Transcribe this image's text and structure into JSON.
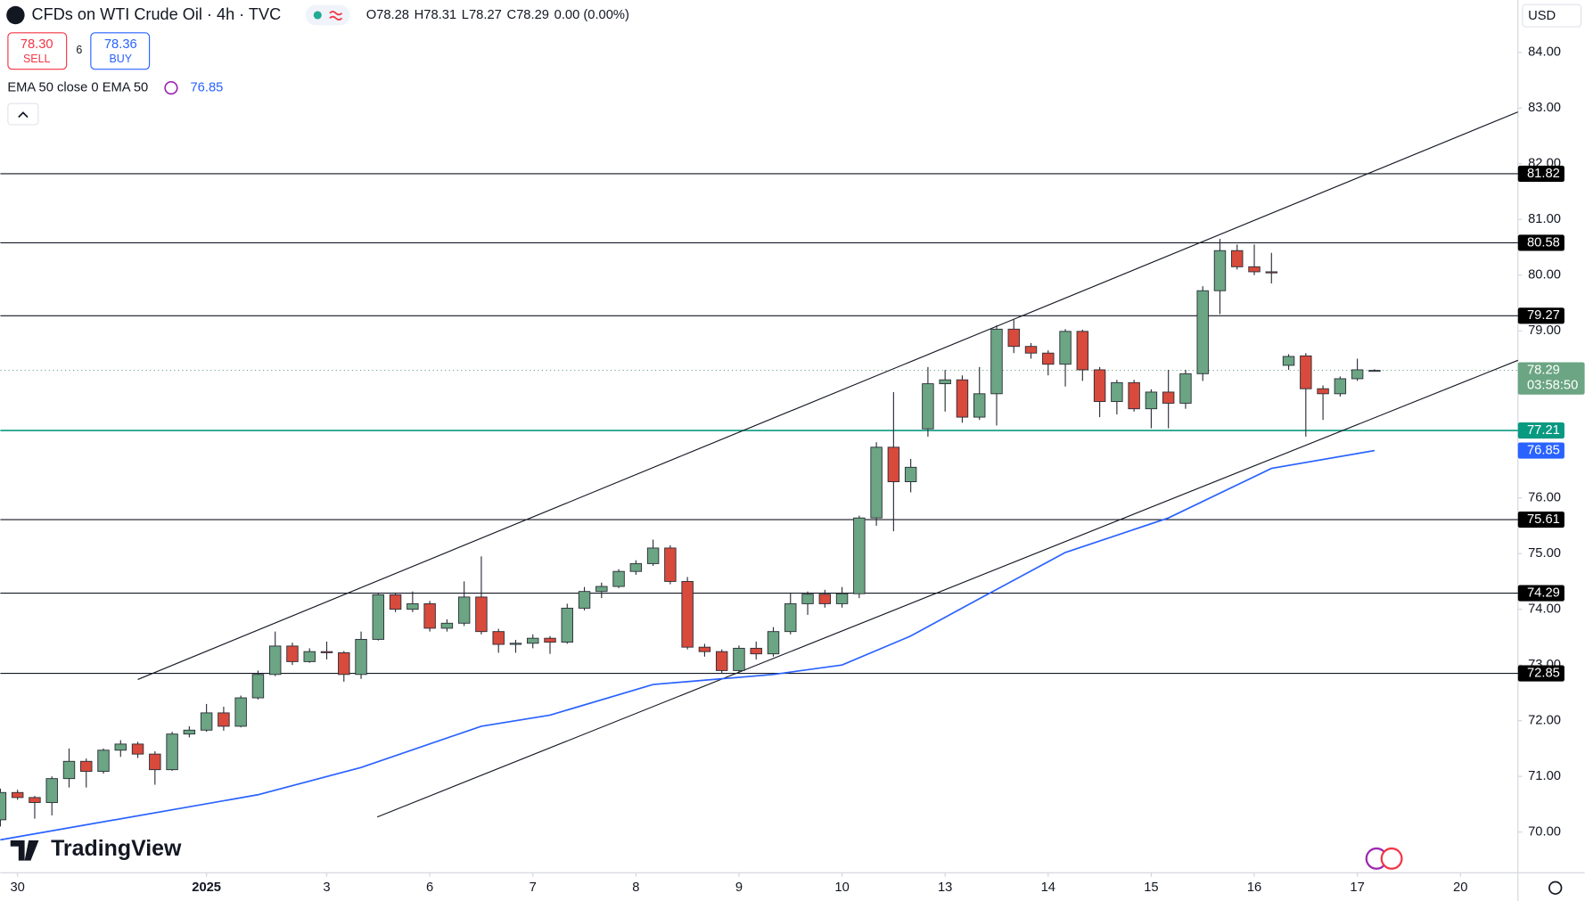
{
  "chart_data": {
    "type": "candlestick",
    "title": "CFDs on WTI Crude Oil · 4h · TVC",
    "legend_ohlc": [
      "O78.28",
      "H78.31",
      "L78.27",
      "C78.29",
      "0.00 (0.00%)"
    ],
    "sell": {
      "price": "78.30",
      "label": "SELL"
    },
    "spread": "6",
    "buy": {
      "price": "78.36",
      "label": "BUY"
    },
    "currency": "USD",
    "brand": "TradingView",
    "x": [
      0,
      1,
      2,
      3,
      4,
      5,
      6,
      7,
      8,
      9,
      10,
      11,
      12,
      13,
      14,
      15,
      16,
      17,
      18,
      19,
      20,
      21,
      22,
      23,
      24,
      25,
      26,
      27,
      28,
      29,
      30,
      31,
      32,
      33,
      34,
      35,
      36,
      37,
      38,
      39,
      40,
      41,
      42,
      43,
      44,
      45,
      46,
      47,
      48,
      49,
      50,
      51,
      52,
      53,
      54,
      55,
      56,
      57,
      58,
      59,
      60,
      61,
      62,
      63,
      64,
      65,
      66,
      67,
      68,
      69,
      70,
      71,
      72,
      73,
      74,
      75,
      76,
      77,
      78,
      79,
      80
    ],
    "open": [
      70.22,
      70.71,
      70.62,
      70.53,
      70.96,
      71.27,
      71.09,
      71.47,
      71.58,
      71.4,
      71.12,
      71.76,
      71.83,
      72.14,
      71.9,
      72.41,
      72.83,
      73.34,
      73.06,
      73.24,
      73.22,
      72.83,
      73.46,
      74.26,
      74.0,
      74.1,
      73.66,
      73.75,
      74.22,
      73.6,
      73.37,
      73.39,
      73.48,
      73.41,
      74.02,
      74.32,
      74.41,
      74.68,
      74.82,
      75.1,
      74.5,
      73.32,
      73.24,
      72.9,
      73.3,
      73.2,
      73.6,
      74.1,
      74.27,
      74.1,
      74.28,
      75.64,
      76.91,
      76.29,
      77.24,
      78.05,
      78.12,
      77.45,
      77.87,
      79.03,
      78.72,
      78.6,
      78.4,
      78.99,
      78.3,
      77.73,
      78.07,
      77.6,
      77.9,
      77.7,
      78.23,
      79.72,
      80.44,
      80.15,
      80.06,
      78.38,
      78.55,
      77.96,
      77.87,
      78.14,
      78.28
    ],
    "high": [
      70.78,
      70.76,
      70.65,
      71.0,
      71.5,
      71.32,
      71.5,
      71.65,
      71.62,
      71.45,
      71.8,
      71.9,
      72.3,
      72.25,
      72.45,
      72.9,
      73.6,
      73.4,
      73.3,
      73.42,
      73.25,
      73.6,
      74.3,
      74.3,
      74.32,
      74.15,
      73.82,
      74.5,
      74.95,
      73.65,
      73.45,
      73.55,
      73.52,
      74.1,
      74.4,
      74.48,
      74.72,
      74.88,
      75.25,
      75.15,
      74.58,
      73.38,
      73.28,
      73.35,
      73.42,
      73.68,
      74.3,
      74.32,
      74.35,
      74.4,
      75.68,
      77.0,
      77.9,
      76.7,
      78.35,
      78.3,
      78.2,
      78.35,
      79.1,
      79.2,
      78.78,
      78.65,
      79.03,
      79.02,
      78.35,
      78.12,
      78.12,
      77.95,
      78.3,
      78.3,
      79.8,
      80.65,
      80.55,
      80.55,
      80.4,
      78.58,
      78.6,
      78.02,
      78.18,
      78.5,
      78.31
    ],
    "low": [
      70.1,
      70.58,
      70.24,
      70.3,
      70.8,
      70.8,
      71.05,
      71.35,
      71.33,
      70.85,
      71.1,
      71.7,
      71.8,
      71.82,
      71.88,
      72.38,
      72.8,
      73.0,
      73.04,
      73.1,
      72.7,
      72.75,
      73.44,
      73.95,
      73.95,
      73.6,
      73.6,
      73.7,
      73.55,
      73.22,
      73.22,
      73.3,
      73.2,
      73.38,
      73.98,
      74.2,
      74.38,
      74.62,
      74.78,
      74.45,
      73.28,
      73.15,
      72.85,
      72.85,
      73.1,
      73.15,
      73.55,
      73.9,
      74.03,
      74.03,
      74.2,
      75.5,
      75.4,
      76.1,
      77.1,
      77.55,
      77.35,
      77.4,
      77.3,
      78.6,
      78.5,
      78.2,
      78.0,
      78.1,
      77.45,
      77.5,
      77.55,
      77.25,
      77.25,
      77.6,
      78.1,
      79.3,
      80.1,
      80.0,
      79.85,
      78.3,
      77.1,
      77.4,
      77.82,
      78.1,
      78.27
    ],
    "close": [
      70.71,
      70.62,
      70.53,
      70.96,
      71.27,
      71.09,
      71.47,
      71.58,
      71.4,
      71.12,
      71.76,
      71.83,
      72.14,
      71.9,
      72.41,
      72.83,
      73.34,
      73.06,
      73.24,
      73.22,
      72.83,
      73.46,
      74.26,
      74.0,
      74.1,
      73.66,
      73.75,
      74.22,
      73.6,
      73.37,
      73.39,
      73.48,
      73.41,
      74.02,
      74.32,
      74.41,
      74.68,
      74.82,
      75.1,
      74.5,
      73.32,
      73.24,
      72.9,
      73.3,
      73.2,
      73.6,
      74.1,
      74.27,
      74.1,
      74.28,
      75.64,
      76.91,
      76.29,
      76.55,
      78.05,
      78.12,
      77.45,
      77.87,
      79.03,
      78.72,
      78.6,
      78.4,
      78.99,
      78.3,
      77.73,
      78.07,
      77.6,
      77.9,
      77.7,
      78.23,
      79.72,
      80.44,
      80.15,
      80.06,
      80.04,
      78.54,
      77.96,
      77.87,
      78.14,
      78.3,
      78.29
    ],
    "up_color": "#6ba583",
    "down_color": "#d84a3b",
    "ema": {
      "label": "EMA 50 close 0 EMA 50",
      "value": 76.85,
      "color": "#2962ff",
      "x": [
        0,
        15,
        21,
        28,
        32,
        38,
        45,
        49,
        53,
        57,
        62,
        68,
        74,
        80
      ],
      "values": [
        69.86,
        70.67,
        71.16,
        71.9,
        72.1,
        72.65,
        72.83,
        73.0,
        73.52,
        74.19,
        75.02,
        75.64,
        76.53,
        76.85
      ]
    },
    "levels": [
      {
        "value": 81.82,
        "color": "#131722"
      },
      {
        "value": 80.58,
        "color": "#131722"
      },
      {
        "value": 79.27,
        "color": "#131722"
      },
      {
        "value": 77.21,
        "color": "#089981"
      },
      {
        "value": 75.61,
        "color": "#131722"
      },
      {
        "value": 74.29,
        "color": "#131722"
      },
      {
        "value": 72.85,
        "color": "#131722"
      }
    ],
    "last_price": {
      "value": 78.29,
      "countdown": "03:58:50",
      "color": "#6ba583"
    },
    "trendlines": [
      {
        "x": [
          8,
          88.35
        ],
        "y": [
          72.74,
          82.93
        ]
      },
      {
        "x": [
          21.94,
          88.35
        ],
        "y": [
          70.27,
          78.47
        ]
      }
    ],
    "xlim": [
      0,
      88.35
    ],
    "xticks": [
      {
        "value": 1,
        "label": "30"
      },
      {
        "value": 12,
        "label": "2025"
      },
      {
        "value": 19,
        "label": "3"
      },
      {
        "value": 25,
        "label": "6"
      },
      {
        "value": 31,
        "label": "7"
      },
      {
        "value": 37,
        "label": "8"
      },
      {
        "value": 43,
        "label": "9"
      },
      {
        "value": 49,
        "label": "10"
      },
      {
        "value": 55,
        "label": "13"
      },
      {
        "value": 61,
        "label": "14"
      },
      {
        "value": 67,
        "label": "15"
      },
      {
        "value": 73,
        "label": "16"
      },
      {
        "value": 79,
        "label": "17"
      },
      {
        "value": 85,
        "label": "20"
      }
    ],
    "ylim": [
      69.27,
      84.94
    ],
    "yticks": [
      {
        "value": 70,
        "label": "70.00"
      },
      {
        "value": 71,
        "label": "71.00"
      },
      {
        "value": 72,
        "label": "72.00"
      },
      {
        "value": 73,
        "label": "73.00"
      },
      {
        "value": 74,
        "label": "74.00"
      },
      {
        "value": 75,
        "label": "75.00"
      },
      {
        "value": 76,
        "label": "76.00"
      },
      {
        "value": 79,
        "label": "79.00"
      },
      {
        "value": 80,
        "label": "80.00"
      },
      {
        "value": 81,
        "label": "81.00"
      },
      {
        "value": 82,
        "label": "82.00"
      },
      {
        "value": 83,
        "label": "83.00"
      },
      {
        "value": 84,
        "label": "84.00"
      }
    ]
  }
}
